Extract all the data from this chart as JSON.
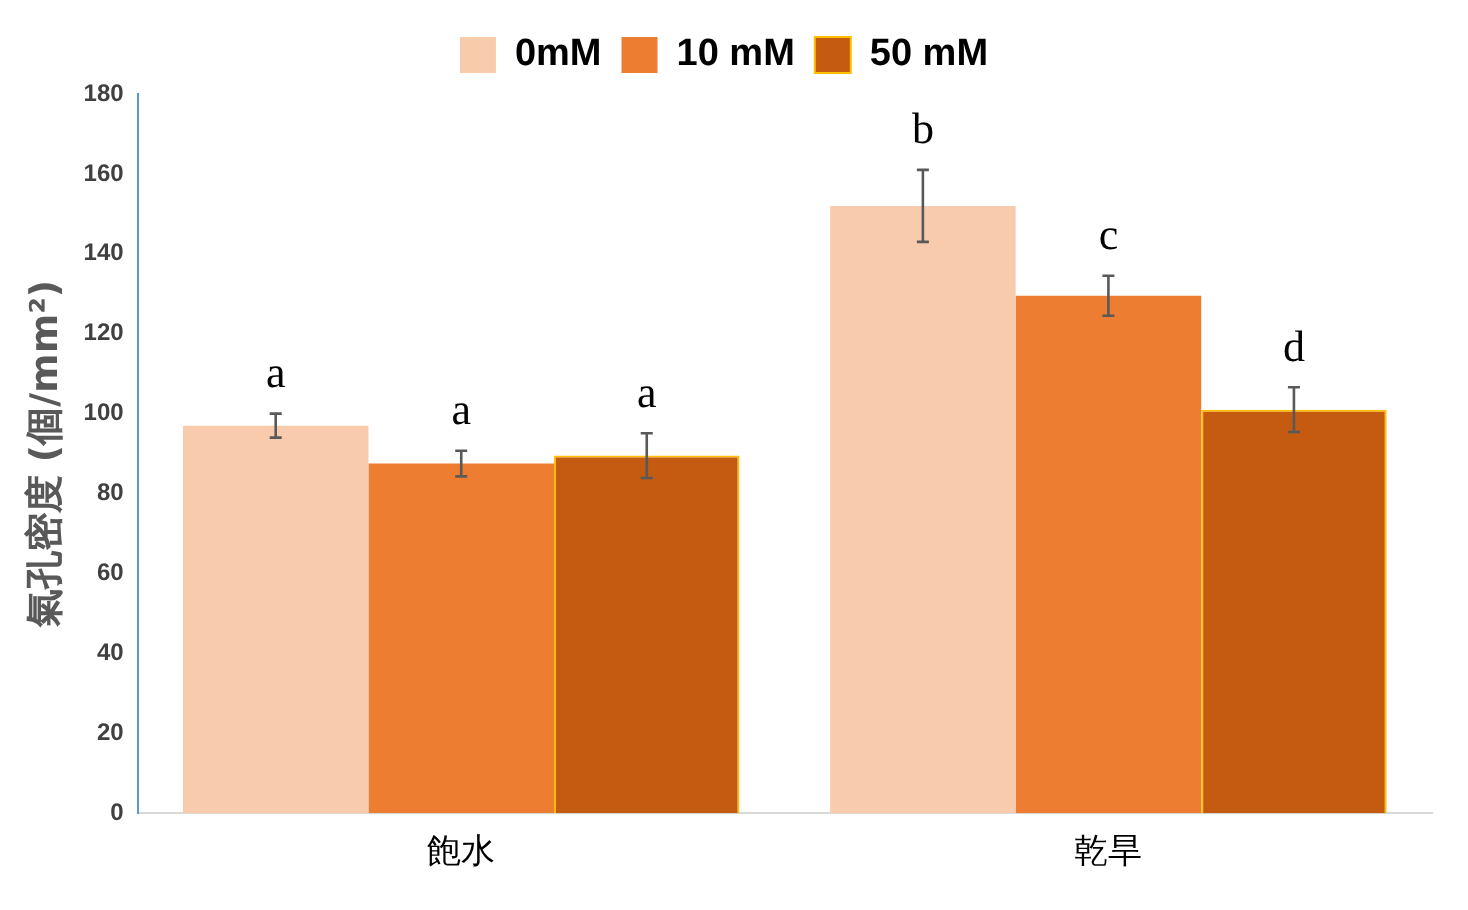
{
  "chart_data": {
    "type": "bar",
    "ylabel": "氣孔密度 (個/mm²)",
    "categories": [
      "飽水",
      "乾旱"
    ],
    "series": [
      {
        "name": "0mM",
        "color": "#f8cbad",
        "values": [
          97,
          152
        ],
        "errors": [
          3,
          9
        ]
      },
      {
        "name": "10 mM",
        "color": "#ed7d31",
        "values": [
          87.5,
          129.5
        ],
        "errors": [
          3.2,
          5
        ]
      },
      {
        "name": "50 mM",
        "color": "#c55a11",
        "values": [
          89.5,
          101
        ],
        "errors": [
          5.6,
          5.6
        ]
      }
    ],
    "ylim": [
      0,
      180
    ],
    "yticks": [
      0,
      20,
      40,
      60,
      80,
      100,
      120,
      140,
      160,
      180
    ],
    "grid": false,
    "legend": "top",
    "annotations": [
      "a",
      "a",
      "a",
      "b",
      "c",
      "d"
    ]
  }
}
